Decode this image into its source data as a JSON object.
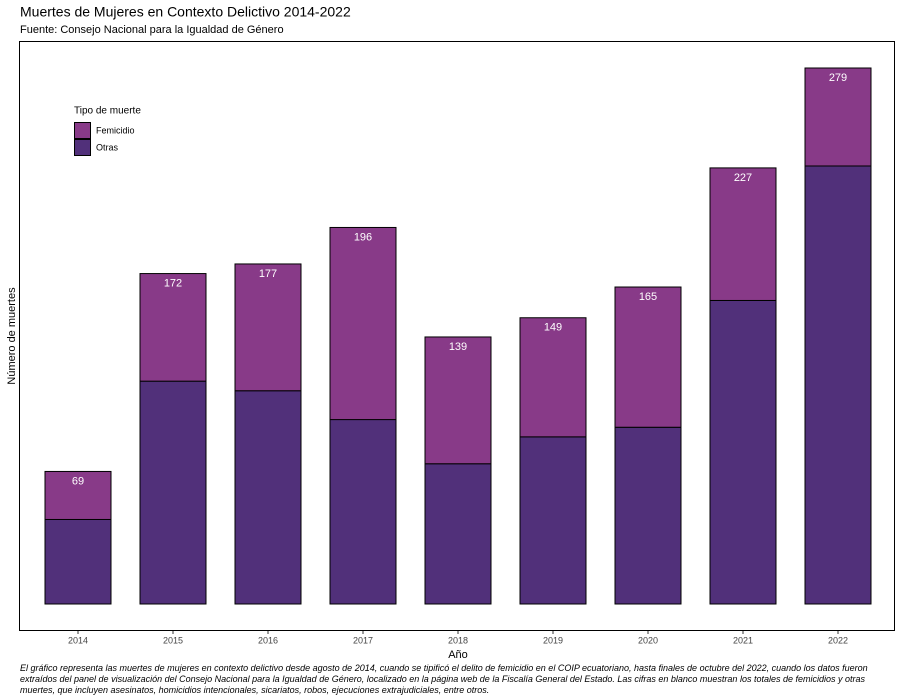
{
  "chart_data": {
    "type": "stacked-bar",
    "title": "Muertes de Mujeres en Contexto Delictivo 2014-2022",
    "subtitle": "Fuente: Consejo Nacional para la Igualdad de Género",
    "x_label": "Año",
    "y_label": "Número de muertes",
    "legend_title": "Tipo de muerte",
    "legend_position": "top-left",
    "categories": [
      "2014",
      "2015",
      "2016",
      "2017",
      "2018",
      "2019",
      "2020",
      "2021",
      "2022"
    ],
    "series": [
      {
        "name": "Otras",
        "color": "#51307a",
        "values": [
          44,
          116,
          111,
          96,
          73,
          87,
          92,
          158,
          228
        ]
      },
      {
        "name": "Femicidio",
        "color": "#883a88",
        "values": [
          25,
          56,
          66,
          100,
          66,
          62,
          73,
          69,
          51
        ]
      }
    ],
    "totals": [
      69,
      172,
      177,
      196,
      139,
      149,
      165,
      227,
      279
    ],
    "note": "El gráfico representa las muertes de mujeres en contexto delictivo desde agosto de 2014, cuando se tipificó el delito de femicidio en el COIP ecuatoriano, hasta finales de octubre del 2022, cuando los datos fueron extraídos del panel de visualización del Consejo Nacional para la Igualdad de Género, localizado en la página web de la Fiscalía General del Estado. Las cifras en blanco muestran los totales de femicidios y otras muertes, que incluyen asesinatos, homicidios intencionales, sicariatos, robos, ejecuciones extrajudiciales, entre otros."
  }
}
